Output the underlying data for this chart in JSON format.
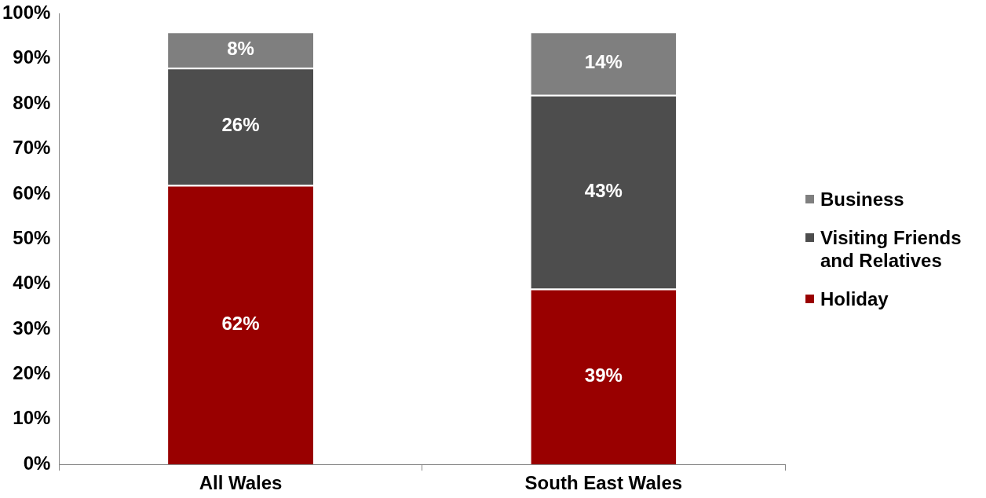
{
  "chart_data": {
    "type": "bar",
    "stacked": true,
    "categories": [
      "All Wales",
      "South East Wales"
    ],
    "series": [
      {
        "name": "Holiday",
        "color": "#990000",
        "values": [
          62,
          39
        ],
        "value_labels": [
          "62%",
          "39%"
        ]
      },
      {
        "name": "Visiting Friends and Relatives",
        "color": "#4d4d4d",
        "values": [
          26,
          43
        ],
        "value_labels": [
          "26%",
          "43%"
        ]
      },
      {
        "name": "Business",
        "color": "#7f7f7f",
        "values": [
          8,
          14
        ],
        "value_labels": [
          "8%",
          "14%"
        ]
      }
    ],
    "ylim": [
      0,
      100
    ],
    "yticks": [
      {
        "value": 0,
        "label": "0%"
      },
      {
        "value": 10,
        "label": "10%"
      },
      {
        "value": 20,
        "label": "20%"
      },
      {
        "value": 30,
        "label": "30%"
      },
      {
        "value": 40,
        "label": "40%"
      },
      {
        "value": 50,
        "label": "50%"
      },
      {
        "value": 60,
        "label": "60%"
      },
      {
        "value": 70,
        "label": "70%"
      },
      {
        "value": 80,
        "label": "80%"
      },
      {
        "value": 90,
        "label": "90%"
      },
      {
        "value": 100,
        "label": "100%"
      }
    ],
    "grid": false,
    "legend": "right"
  }
}
